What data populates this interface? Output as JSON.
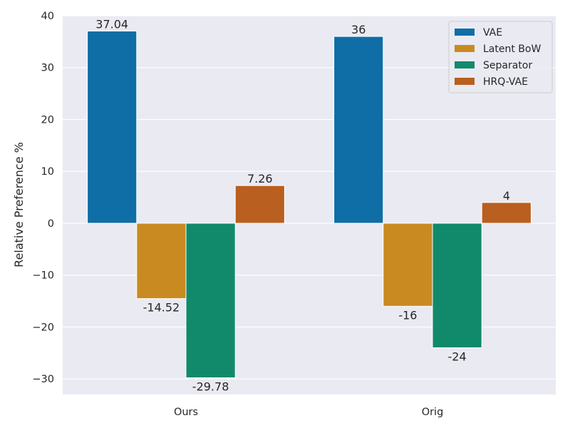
{
  "chart_data": {
    "type": "bar",
    "title": "",
    "xlabel": "",
    "ylabel": "Relative Preference %",
    "categories": [
      "Ours",
      "Orig"
    ],
    "series": [
      {
        "name": "VAE",
        "values": [
          37.04,
          36
        ],
        "labels": [
          "37.04",
          "36"
        ],
        "color": "#0f6ea6"
      },
      {
        "name": "Latent BoW",
        "values": [
          -14.52,
          -16
        ],
        "labels": [
          "-14.52",
          "-16"
        ],
        "color": "#c98b21"
      },
      {
        "name": "Separator",
        "values": [
          -29.78,
          -24
        ],
        "labels": [
          "-29.78",
          "-24"
        ],
        "color": "#118a6b"
      },
      {
        "name": "HRQ-VAE",
        "values": [
          7.26,
          4
        ],
        "labels": [
          "7.26",
          "4"
        ],
        "color": "#b95f1f"
      }
    ],
    "ylim": [
      -33,
      40
    ],
    "yticks": [
      -30,
      -20,
      -10,
      0,
      10,
      20,
      30,
      40
    ],
    "ytick_labels": [
      "−30",
      "−20",
      "−10",
      "0",
      "10",
      "20",
      "30",
      "40"
    ],
    "grid": true,
    "legend": "top-right",
    "background": "#eaeaf2"
  }
}
